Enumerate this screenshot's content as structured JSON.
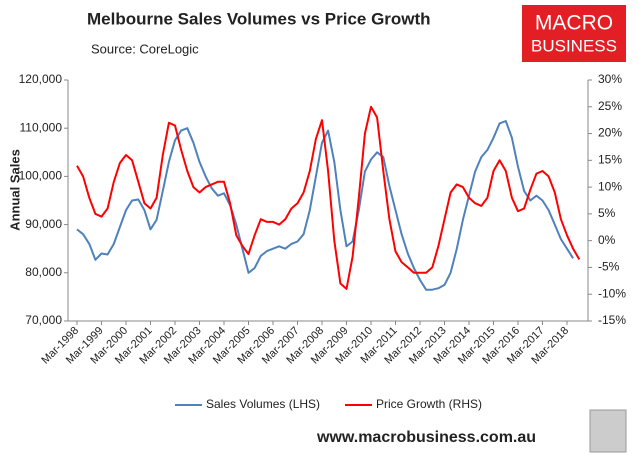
{
  "chart_data": {
    "type": "line",
    "title": "Melbourne Sales Volumes vs Price Growth",
    "subtitle": "Source: CoreLogic",
    "logo": [
      "MACRO",
      "BUSINESS"
    ],
    "footer": "www.macrobusiness.com.au",
    "y_label": "Annual Sales",
    "categories": [
      "Mar-1998",
      null,
      null,
      null,
      "Mar-1999",
      null,
      null,
      null,
      "Mar-2000",
      null,
      null,
      null,
      "Mar-2001",
      null,
      null,
      null,
      "Mar-2002",
      null,
      null,
      null,
      "Mar-2003",
      null,
      null,
      null,
      "Mar-2004",
      null,
      null,
      null,
      "Mar-2005",
      null,
      null,
      null,
      "Mar-2006",
      null,
      null,
      null,
      "Mar-2007",
      null,
      null,
      null,
      "Mar-2008",
      null,
      null,
      null,
      "Mar-2009",
      null,
      null,
      null,
      "Mar-2010",
      null,
      null,
      null,
      "Mar-2011",
      null,
      null,
      null,
      "Mar-2012",
      null,
      null,
      null,
      "Mar-2013",
      null,
      null,
      null,
      "Mar-2014",
      null,
      null,
      null,
      "Mar-2015",
      null,
      null,
      null,
      "Mar-2016",
      null,
      null,
      null,
      "Mar-2017",
      null,
      null,
      null,
      "Mar-2018",
      null,
      null
    ],
    "series": [
      {
        "name": "Sales Volumes (LHS)",
        "color": "#4f81bd",
        "axis": "y",
        "values": [
          89000,
          88000,
          86000,
          82700,
          84000,
          83800,
          86000,
          89500,
          93000,
          95000,
          95200,
          93000,
          89000,
          91000,
          97000,
          103000,
          107500,
          109500,
          110000,
          107000,
          103000,
          100000,
          97500,
          96000,
          96500,
          94000,
          90000,
          85000,
          80000,
          81000,
          83500,
          84500,
          85000,
          85500,
          85000,
          86000,
          86500,
          88000,
          93000,
          100000,
          107000,
          109500,
          103000,
          93000,
          85500,
          86500,
          93000,
          101000,
          103500,
          105000,
          104000,
          98000,
          93000,
          88000,
          84000,
          81000,
          78500,
          76500,
          76500,
          76800,
          77500,
          80000,
          85000,
          91000,
          96000,
          101000,
          104000,
          105500,
          108000,
          111000,
          111500,
          108000,
          102000,
          97000,
          95000,
          96000,
          95000,
          93000,
          90000,
          87000,
          85000,
          83000,
          null
        ]
      },
      {
        "name": "Price Growth (RHS)",
        "color": "#ff0000",
        "axis": "y2",
        "values": [
          14,
          12,
          8,
          5,
          4.5,
          6,
          11,
          14.5,
          16,
          15,
          11,
          7,
          6,
          8,
          16,
          22,
          21.5,
          17,
          13,
          10,
          9,
          10,
          10.5,
          11,
          11,
          7,
          1,
          -1,
          -2.5,
          1,
          4,
          3.5,
          3.5,
          3,
          4,
          6,
          7,
          9,
          13,
          19,
          22.5,
          13,
          0,
          -8,
          -9,
          -3,
          8,
          20,
          25,
          23,
          13,
          4,
          -2,
          -4,
          -5,
          -6,
          -6,
          -6,
          -5,
          -1,
          4,
          9,
          10.5,
          10,
          8,
          7,
          6.5,
          8,
          13,
          15,
          13,
          8,
          5.5,
          6,
          9.5,
          12.5,
          13,
          12,
          9,
          4,
          1,
          -1.5,
          -3.5
        ]
      }
    ],
    "ylim": [
      70000,
      120000
    ],
    "yticks": [
      {
        "value": 70000,
        "label": "70,000"
      },
      {
        "value": 80000,
        "label": "80,000"
      },
      {
        "value": 90000,
        "label": "90,000"
      },
      {
        "value": 100000,
        "label": "100,000"
      },
      {
        "value": 110000,
        "label": "110,000"
      },
      {
        "value": 120000,
        "label": "120,000"
      }
    ],
    "y2lim": [
      -15,
      30
    ],
    "y2ticks": [
      {
        "value": -15,
        "label": "-15%"
      },
      {
        "value": -10,
        "label": "-10%"
      },
      {
        "value": -5,
        "label": "-5%"
      },
      {
        "value": 0,
        "label": "0%"
      },
      {
        "value": 5,
        "label": "5%"
      },
      {
        "value": 10,
        "label": "10%"
      },
      {
        "value": 15,
        "label": "15%"
      },
      {
        "value": 20,
        "label": "20%"
      },
      {
        "value": 25,
        "label": "25%"
      },
      {
        "value": 30,
        "label": "30%"
      }
    ],
    "grid": false
  }
}
